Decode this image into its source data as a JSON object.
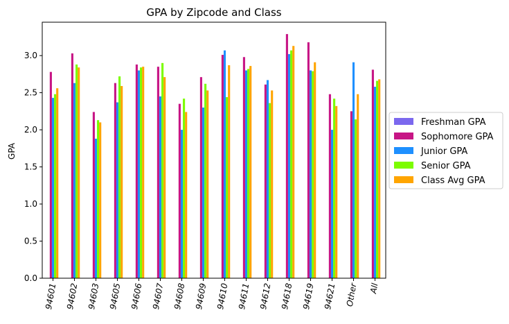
{
  "chart_data": {
    "type": "bar",
    "title": "GPA by Zipcode and Class",
    "xlabel": "",
    "ylabel": "GPA",
    "ylim": [
      0,
      3.45
    ],
    "yticks": [
      "0.0",
      "0.5",
      "1.0",
      "1.5",
      "2.0",
      "2.5",
      "3.0"
    ],
    "grid": false,
    "legend_position": "right",
    "categories": [
      "94601",
      "94602",
      "94603",
      "94605",
      "94606",
      "94607",
      "94608",
      "94609",
      "94610",
      "94611",
      "94612",
      "94618",
      "94619",
      "94621",
      "Other",
      "All"
    ],
    "series": [
      {
        "name": "Freshman GPA",
        "color": "#7b68ee",
        "values": [
          null,
          null,
          null,
          null,
          null,
          null,
          null,
          null,
          null,
          null,
          null,
          null,
          null,
          null,
          null,
          null
        ]
      },
      {
        "name": "Sophomore GPA",
        "color": "#c71585",
        "values": [
          2.78,
          3.03,
          2.24,
          2.63,
          2.88,
          2.85,
          2.35,
          2.71,
          3.01,
          2.98,
          2.61,
          3.29,
          3.18,
          2.48,
          2.25,
          2.81
        ]
      },
      {
        "name": "Junior GPA",
        "color": "#1e90ff",
        "values": [
          2.43,
          2.63,
          1.88,
          2.37,
          2.8,
          2.45,
          2.0,
          2.3,
          3.07,
          2.8,
          2.67,
          3.02,
          2.8,
          2.0,
          2.91,
          2.58
        ]
      },
      {
        "name": "Senior GPA",
        "color": "#7cfc00",
        "values": [
          2.48,
          2.88,
          2.13,
          2.72,
          2.84,
          2.9,
          2.42,
          2.62,
          2.44,
          2.82,
          2.36,
          3.07,
          2.79,
          2.42,
          2.14,
          2.66
        ]
      },
      {
        "name": "Class Avg GPA",
        "color": "#ffa500",
        "values": [
          2.56,
          2.84,
          2.1,
          2.59,
          2.85,
          2.71,
          2.24,
          2.53,
          2.87,
          2.86,
          2.53,
          3.13,
          2.91,
          2.32,
          2.48,
          2.68
        ]
      }
    ]
  }
}
